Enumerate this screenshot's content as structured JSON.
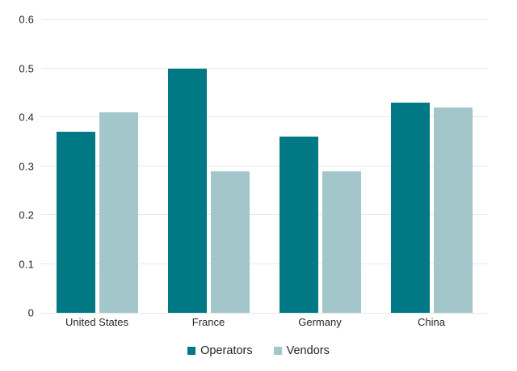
{
  "chart_data": {
    "type": "bar",
    "title": "",
    "xlabel": "",
    "ylabel": "",
    "categories": [
      "United States",
      "France",
      "Germany",
      "China"
    ],
    "series": [
      {
        "name": "Operators",
        "color": "#007984",
        "values": [
          0.37,
          0.5,
          0.36,
          0.43
        ]
      },
      {
        "name": "Vendors",
        "color": "#a2c6ca",
        "values": [
          0.41,
          0.29,
          0.29,
          0.42
        ]
      }
    ],
    "ylim": [
      0,
      0.6
    ],
    "yticks": [
      0,
      0.1,
      0.2,
      0.3,
      0.4,
      0.5,
      0.6
    ],
    "ytick_labels": [
      "0",
      "0.1",
      "0.2",
      "0.3",
      "0.4",
      "0.5",
      "0.6"
    ],
    "grid": true,
    "legend_position": "bottom"
  },
  "legend": {
    "items": [
      {
        "label": "Operators",
        "color": "#007984"
      },
      {
        "label": "Vendors",
        "color": "#a2c6ca"
      }
    ]
  },
  "colors": {
    "background": "#ffffff",
    "gridline": "#e7e7e7",
    "text": "#262626"
  }
}
